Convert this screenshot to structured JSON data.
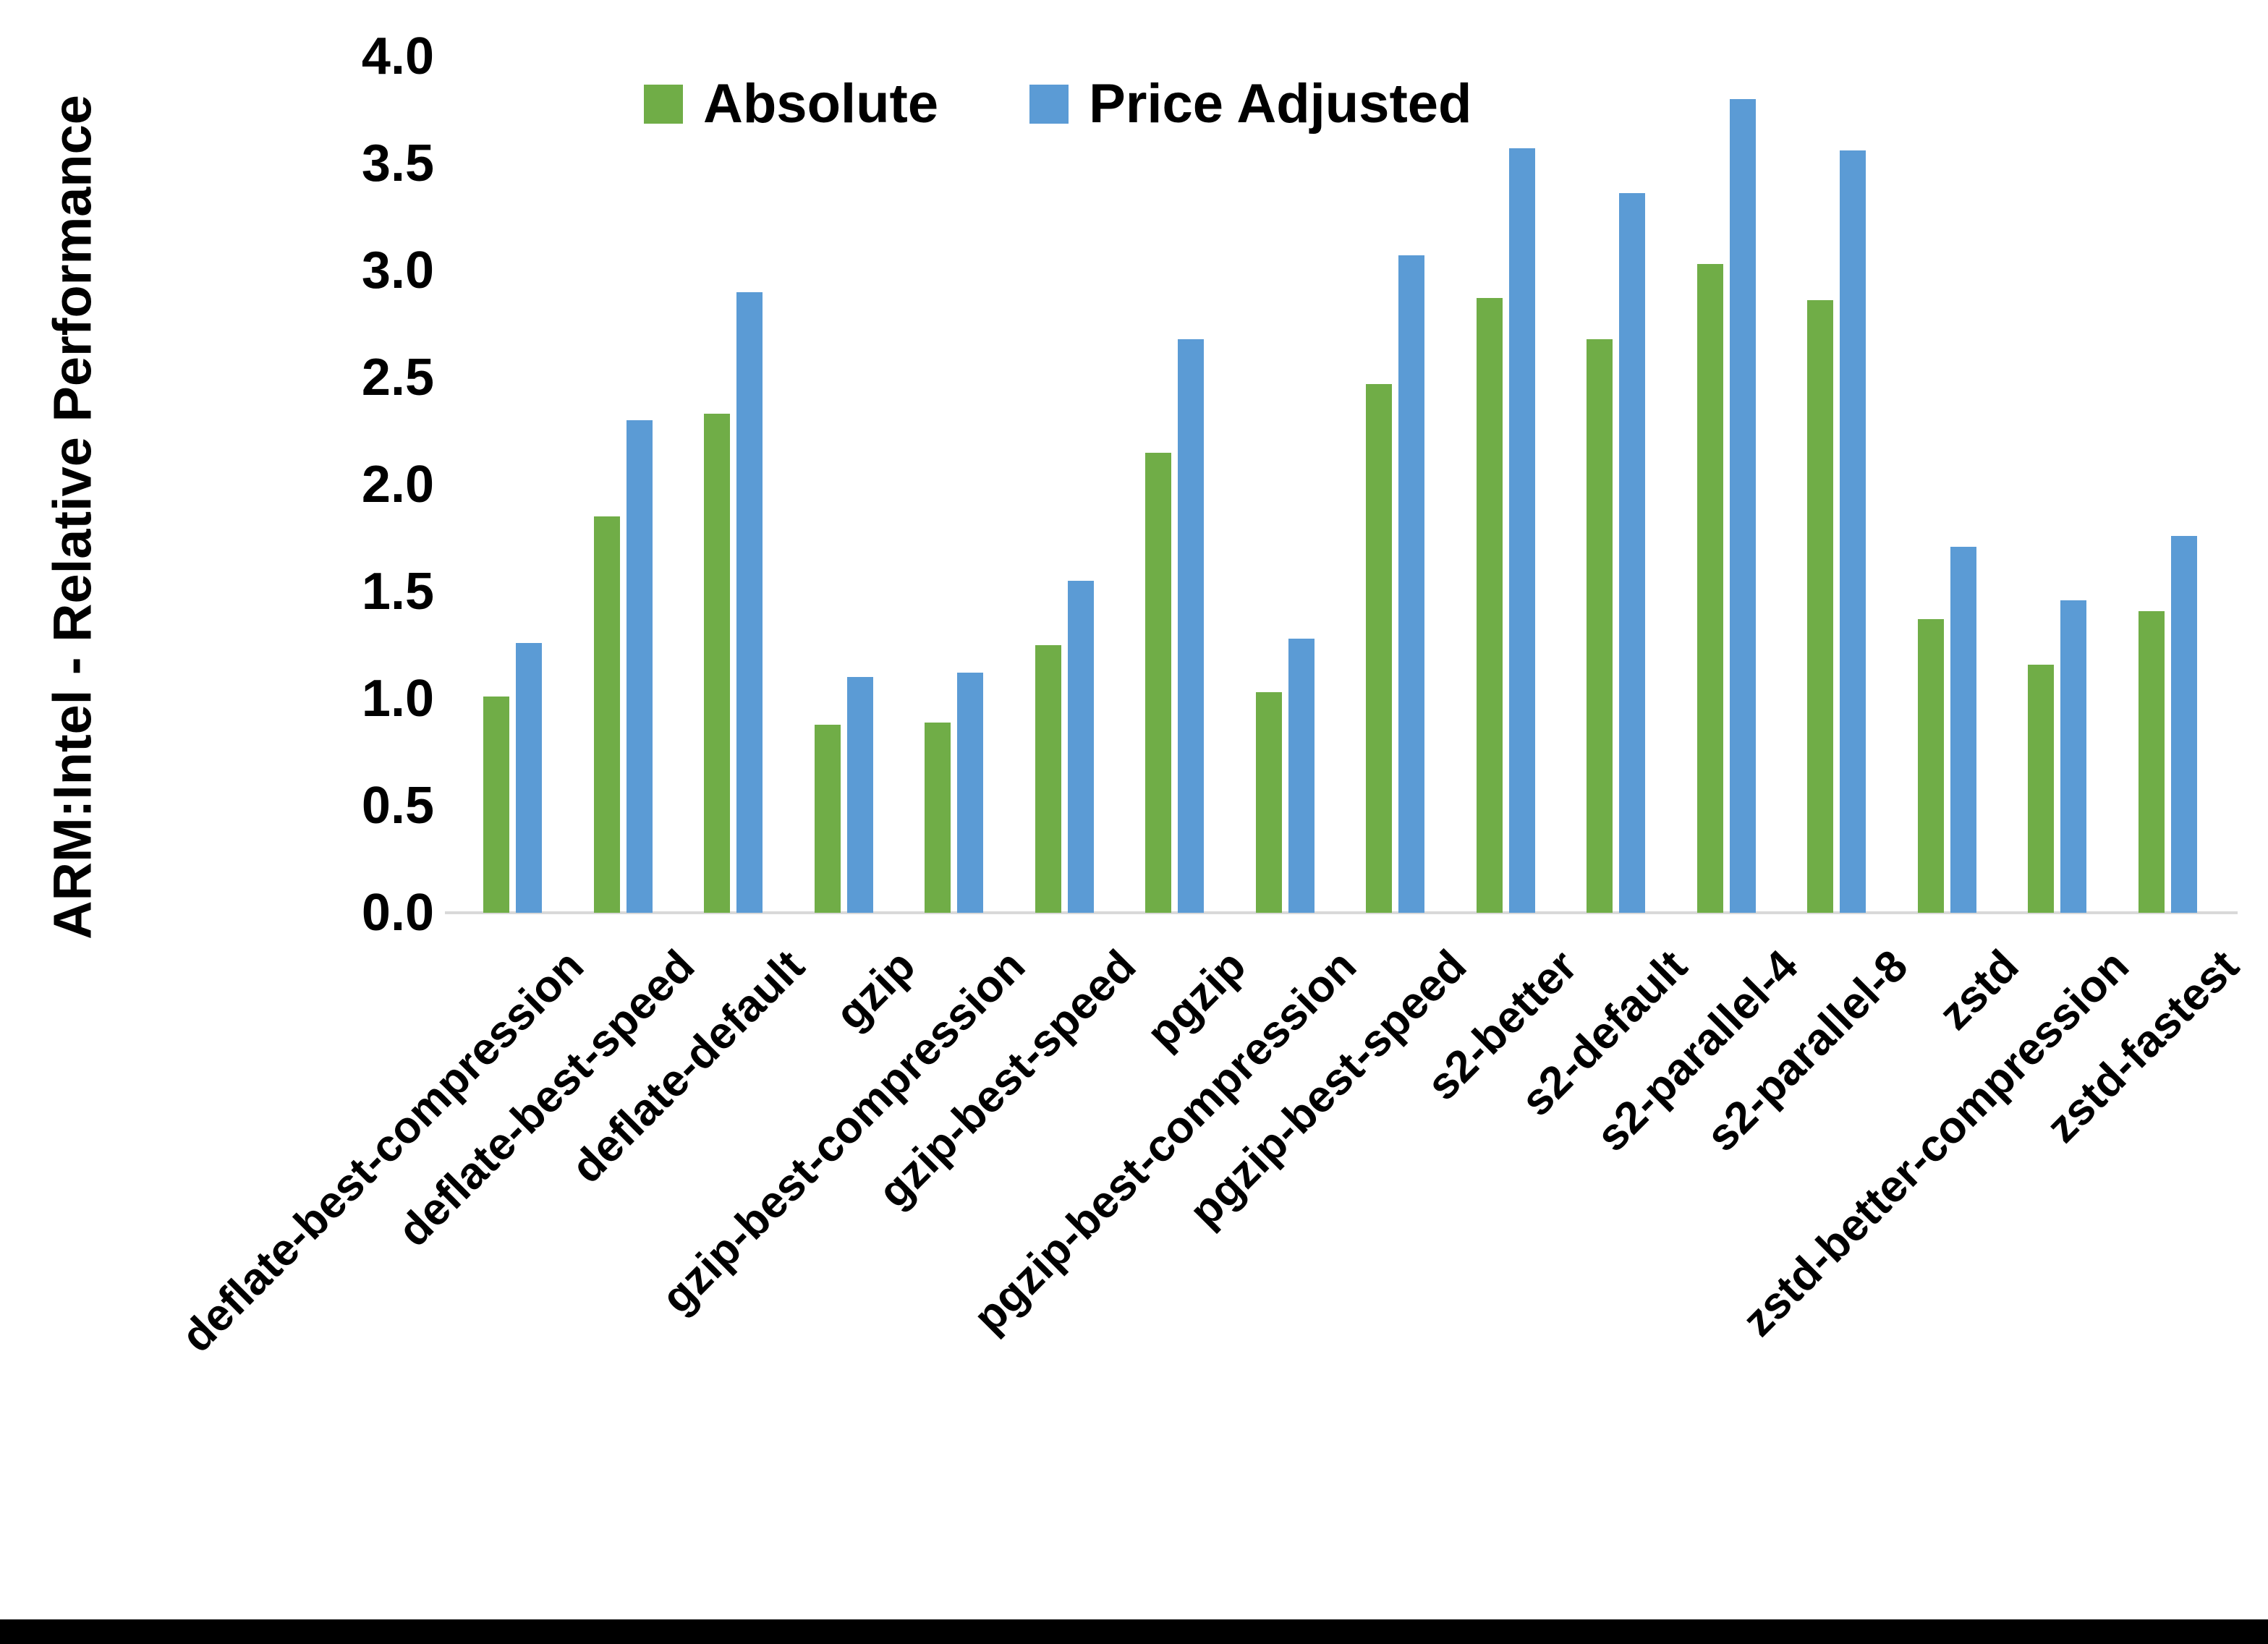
{
  "figure": {
    "background_color": "#ffffff",
    "bottom_border_color": "#000000",
    "axis_line_color": "#d9d9d9",
    "text_color": "#000000"
  },
  "chart_data": {
    "type": "bar",
    "title": "",
    "xlabel": "",
    "ylabel": "ARM:Intel - Relative Performance",
    "ylim": [
      0.0,
      4.0
    ],
    "ytick_step": 0.5,
    "yticks": [
      "0.0",
      "0.5",
      "1.0",
      "1.5",
      "2.0",
      "2.5",
      "3.0",
      "3.5",
      "4.0"
    ],
    "grid": false,
    "legend_position": "top-center",
    "categories": [
      "deflate-best-compression",
      "deflate-best-speed",
      "deflate-default",
      "gzip",
      "gzip-best-compression",
      "gzip-best-speed",
      "pgzip",
      "pgzip-best-compression",
      "pgzip-best-speed",
      "s2-better",
      "s2-default",
      "s2-parallel-4",
      "s2-parallel-8",
      "zstd",
      "zstd-better-compression",
      "zstd-fastest"
    ],
    "series": [
      {
        "name": "Absolute",
        "color": "#70AD47",
        "values": [
          1.01,
          1.85,
          2.33,
          0.88,
          0.89,
          1.25,
          2.15,
          1.03,
          2.47,
          2.87,
          2.68,
          3.03,
          2.86,
          1.37,
          1.16,
          1.41
        ]
      },
      {
        "name": "Price Adjusted",
        "color": "#5B9BD5",
        "values": [
          1.26,
          2.3,
          2.9,
          1.1,
          1.12,
          1.55,
          2.68,
          1.28,
          3.07,
          3.57,
          3.36,
          3.8,
          3.56,
          1.71,
          1.46,
          1.76
        ]
      }
    ]
  }
}
